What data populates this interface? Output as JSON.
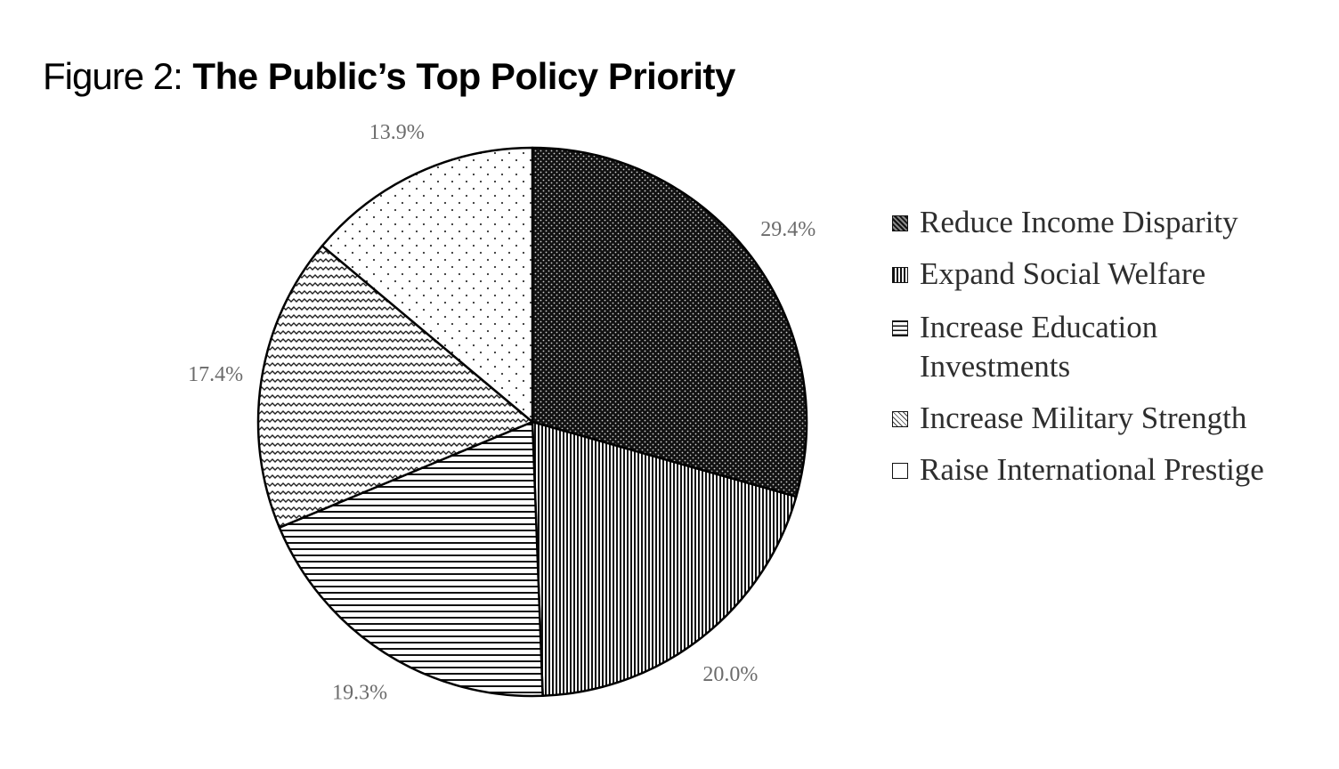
{
  "figure": {
    "title_prefix": "Figure 2:",
    "title_main": "The Public’s Top Policy Priority"
  },
  "chart_data": {
    "type": "pie",
    "title": "The Public’s Top Policy Priority",
    "start_angle": "12 o'clock, clockwise",
    "legend_position": "right",
    "slices": [
      {
        "label": "Reduce Income Disparity",
        "value": 29.4,
        "value_label": "29.4%",
        "pattern": "dense-dots-dark"
      },
      {
        "label": "Expand Social Welfare",
        "value": 20.0,
        "value_label": "20.0%",
        "pattern": "vertical-lines"
      },
      {
        "label": "Increase Education Investments",
        "value": 19.3,
        "value_label": "19.3%",
        "pattern": "horizontal-lines"
      },
      {
        "label": "Increase Military Strength",
        "value": 17.4,
        "value_label": "17.4%",
        "pattern": "wavy-lines"
      },
      {
        "label": "Raise International Prestige",
        "value": 13.9,
        "value_label": "13.9%",
        "pattern": "sparse-dots"
      }
    ]
  }
}
